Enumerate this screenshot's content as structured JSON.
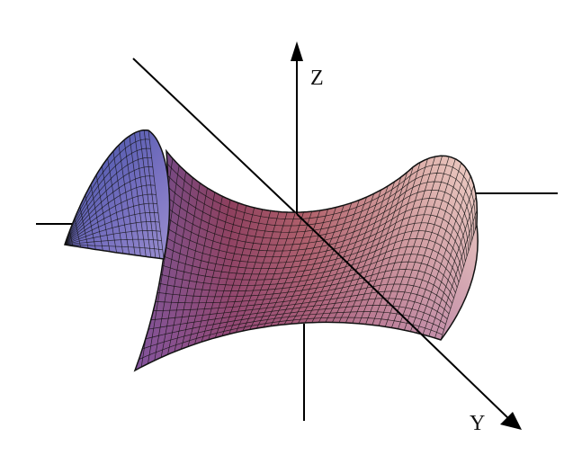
{
  "axes": {
    "z_label": "Z",
    "y_label": "Y"
  },
  "surface": {
    "colors": {
      "left_light": "#9186c8",
      "left_dark": "#4a46a0",
      "center": "#a6566c",
      "center_dark": "#6b3460",
      "right_light": "#f3d6c6",
      "front_purple": "#a45aa0",
      "mesh": "#111111"
    }
  },
  "colors": {
    "axis": "#000000",
    "background": "#ffffff"
  }
}
